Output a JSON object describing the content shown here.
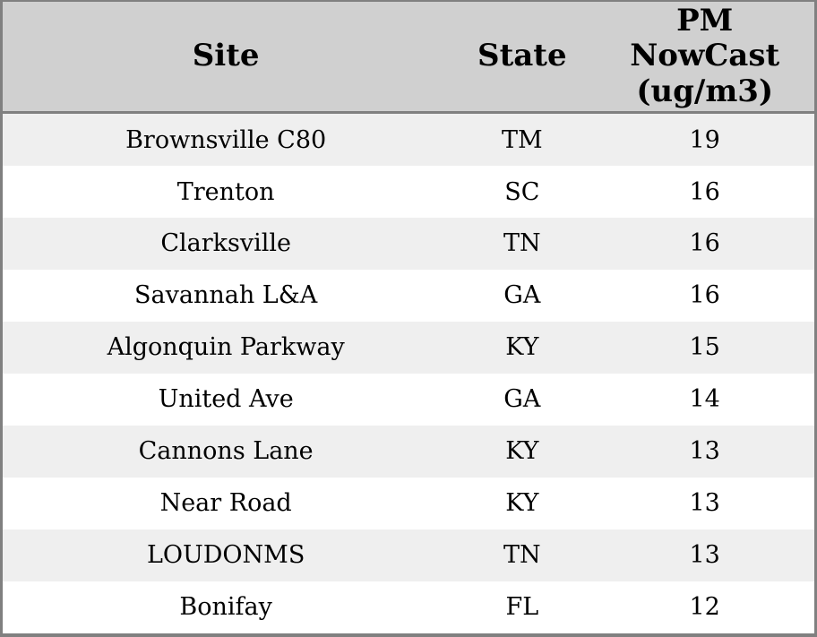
{
  "chart_data": {
    "type": "table",
    "columns": [
      {
        "key": "site",
        "label": "Site"
      },
      {
        "key": "state",
        "label": "State"
      },
      {
        "key": "value",
        "label": "PM NowCast (ug/m3)"
      }
    ],
    "rows": [
      {
        "site": "Brownsville C80",
        "state": "TM",
        "value": "19"
      },
      {
        "site": "Trenton",
        "state": "SC",
        "value": "16"
      },
      {
        "site": "Clarksville",
        "state": "TN",
        "value": "16"
      },
      {
        "site": "Savannah L&A",
        "state": "GA",
        "value": "16"
      },
      {
        "site": "Algonquin Parkway",
        "state": "KY",
        "value": "15"
      },
      {
        "site": "United Ave",
        "state": "GA",
        "value": "14"
      },
      {
        "site": "Cannons Lane",
        "state": "KY",
        "value": "13"
      },
      {
        "site": "Near Road",
        "state": "KY",
        "value": "13"
      },
      {
        "site": "LOUDONMS",
        "state": "TN",
        "value": "13"
      },
      {
        "site": "Bonifay",
        "state": "FL",
        "value": "12"
      }
    ]
  },
  "colors": {
    "header_bg": "#d0d0d0",
    "row_odd_bg": "#efefef",
    "row_even_bg": "#ffffff",
    "border": "#808080",
    "text": "#000000"
  }
}
